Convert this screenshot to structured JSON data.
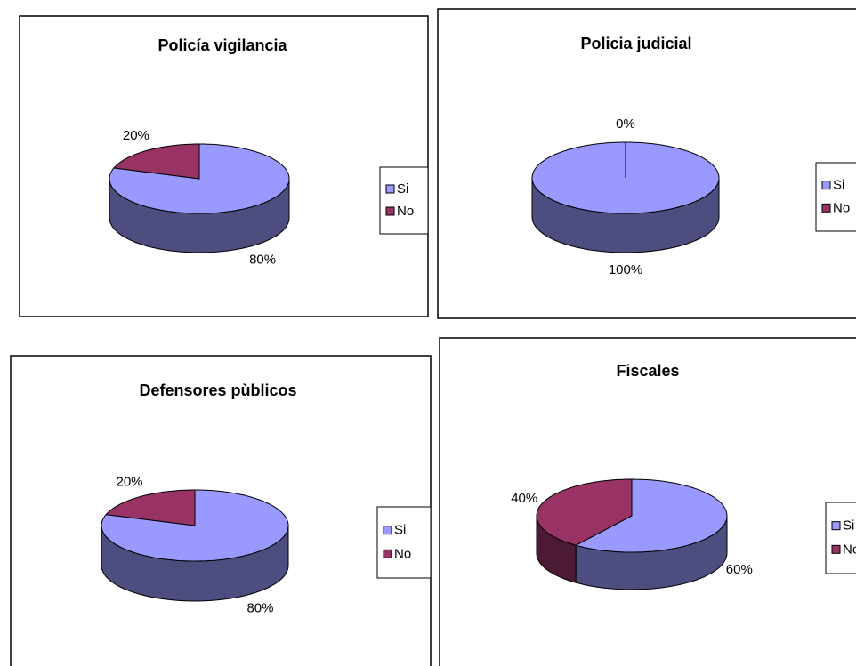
{
  "chart_data": [
    {
      "type": "pie",
      "title": "Policía vigilancia",
      "categories": [
        "Si",
        "No"
      ],
      "values": [
        80,
        20
      ],
      "value_labels": [
        "80%",
        "20%"
      ],
      "colors": [
        "#9999ff",
        "#993366"
      ],
      "legend": "right"
    },
    {
      "type": "pie",
      "title": "Policia judicial",
      "categories": [
        "Si",
        "No"
      ],
      "values": [
        100,
        0
      ],
      "value_labels": [
        "100%",
        "0%"
      ],
      "colors": [
        "#9999ff",
        "#993366"
      ],
      "legend": "right"
    },
    {
      "type": "pie",
      "title": "Defensores pùblicos",
      "categories": [
        "Si",
        "No"
      ],
      "values": [
        80,
        20
      ],
      "value_labels": [
        "80%",
        "20%"
      ],
      "colors": [
        "#9999ff",
        "#993366"
      ],
      "legend": "right"
    },
    {
      "type": "pie",
      "title": "Fiscales",
      "categories": [
        "Si",
        "No"
      ],
      "values": [
        60,
        40
      ],
      "value_labels": [
        "60%",
        "40%"
      ],
      "colors": [
        "#9999ff",
        "#993366"
      ],
      "legend": "right"
    }
  ]
}
